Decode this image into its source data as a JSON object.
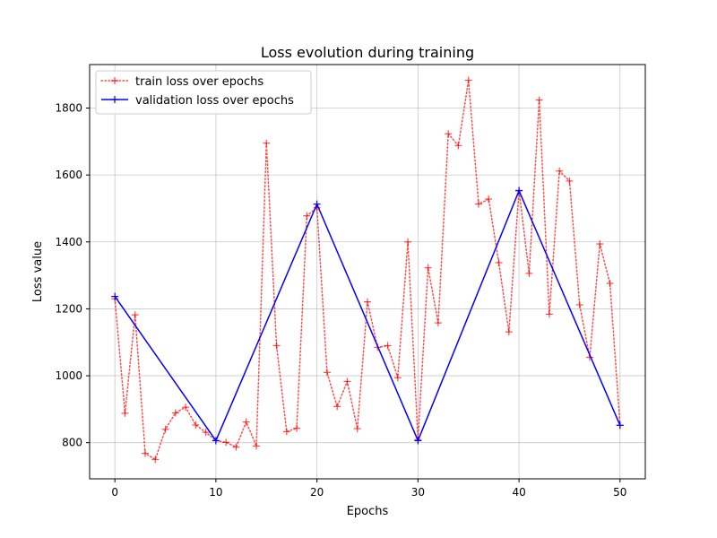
{
  "chart_data": {
    "type": "line",
    "title": "Loss evolution during training",
    "xlabel": "Epochs",
    "ylabel": "Loss value",
    "xlim": [
      -2.5,
      52.5
    ],
    "ylim": [
      692,
      1930
    ],
    "xticks": [
      0,
      10,
      20,
      30,
      40,
      50
    ],
    "yticks": [
      800,
      1000,
      1200,
      1400,
      1600,
      1800
    ],
    "grid": true,
    "legend": {
      "placement": "top-left"
    },
    "series": [
      {
        "name": "train loss over epochs",
        "color": "#ff0000",
        "opacity": 0.7,
        "linestyle": "dotted",
        "marker": "plus",
        "x": [
          0,
          1,
          2,
          3,
          4,
          5,
          6,
          7,
          8,
          9,
          10,
          11,
          12,
          13,
          14,
          15,
          16,
          17,
          18,
          19,
          20,
          21,
          22,
          23,
          24,
          25,
          26,
          27,
          28,
          29,
          30,
          31,
          32,
          33,
          34,
          35,
          36,
          37,
          38,
          39,
          40,
          41,
          42,
          43,
          44,
          45,
          46,
          47,
          48,
          49,
          50
        ],
        "y": [
          1230,
          888,
          1182,
          768,
          750,
          840,
          889,
          906,
          853,
          831,
          806,
          801,
          787,
          862,
          790,
          1695,
          1090,
          833,
          843,
          1478,
          1502,
          1010,
          908,
          983,
          842,
          1221,
          1085,
          1090,
          994,
          1400,
          809,
          1323,
          1158,
          1723,
          1688,
          1883,
          1513,
          1528,
          1338,
          1131,
          1554,
          1306,
          1824,
          1184,
          1612,
          1582,
          1212,
          1055,
          1394,
          1276,
          852
        ]
      },
      {
        "name": "validation loss over epochs",
        "color": "#0000ff",
        "opacity": 1,
        "linestyle": "solid",
        "marker": "plus",
        "x": [
          0,
          10,
          20,
          30,
          40,
          50
        ],
        "y": [
          1237,
          806,
          1513,
          806,
          1553,
          852
        ]
      }
    ]
  }
}
